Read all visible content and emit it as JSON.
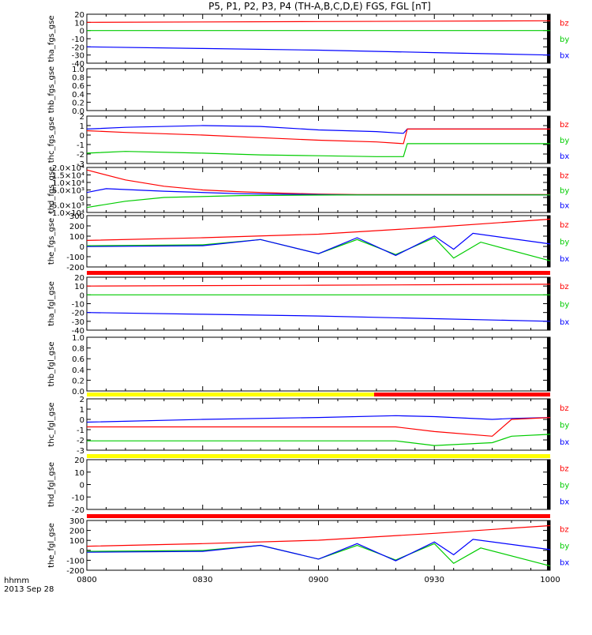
{
  "title": "P5, P1, P2, P3, P4 (TH-A,B,C,D,E) FGS, FGL [nT]",
  "footer": {
    "time_label": "hhmm",
    "date_label": "2013 Sep 28"
  },
  "colors": {
    "bz": "#ff0000",
    "by": "#00cc00",
    "bx": "#0000ff",
    "bar_red": "#ff0000",
    "bar_yellow": "#ffff00"
  },
  "chart_data": {
    "type": "line",
    "x_axis": {
      "range": [
        "0800",
        "1000"
      ],
      "tick_labels": [
        "0800",
        "0830",
        "0900",
        "0930",
        "1000"
      ]
    },
    "legend": [
      "bz",
      "by",
      "bx"
    ],
    "panels": [
      {
        "ylabel": "tha_fgs_gse",
        "ylim": [
          -40,
          20
        ],
        "ytick_labels": [
          "20",
          "10",
          "0",
          "-10",
          "-20",
          "-30",
          "-40"
        ],
        "legend_entries": [
          "bz",
          "by",
          "bx"
        ],
        "series": [
          {
            "name": "bz",
            "x": [
              "0800",
              "0830",
              "0900",
              "0930",
              "1000"
            ],
            "values": [
              10,
              10.5,
              11,
              11.5,
              12
            ]
          },
          {
            "name": "by",
            "x": [
              "0800",
              "0830",
              "0900",
              "0930",
              "1000"
            ],
            "values": [
              0,
              0,
              0,
              0,
              0
            ]
          },
          {
            "name": "bx",
            "x": [
              "0800",
              "0830",
              "0900",
              "0930",
              "1000"
            ],
            "values": [
              -20,
              -22,
              -24,
              -27,
              -30
            ]
          }
        ]
      },
      {
        "ylabel": "thb_fgs_gse",
        "ylim": [
          0,
          1
        ],
        "ytick_labels": [
          "1.0",
          "0.8",
          "0.6",
          "0.4",
          "0.2",
          "0.0"
        ],
        "legend_entries": [],
        "series": []
      },
      {
        "ylabel": "thc_fgs_gse",
        "ylim": [
          -3,
          2.5
        ],
        "ytick_labels": [
          "2",
          "1",
          "0",
          "-1",
          "-2",
          "-3"
        ],
        "legend_entries": [
          "bz",
          "by",
          "bx"
        ],
        "series": [
          {
            "name": "bx",
            "x": [
              "0800",
              "0810",
              "0830",
              "0845",
              "0900",
              "0915",
              "0922",
              "0923",
              "1000"
            ],
            "values": [
              1.0,
              1.2,
              1.4,
              1.3,
              0.9,
              0.7,
              0.5,
              1.0,
              1.0
            ]
          },
          {
            "name": "bz",
            "x": [
              "0800",
              "0810",
              "0830",
              "0845",
              "0900",
              "0915",
              "0922",
              "0923",
              "1000"
            ],
            "values": [
              0.8,
              0.6,
              0.3,
              0.0,
              -0.3,
              -0.5,
              -0.7,
              1.0,
              1.0
            ]
          },
          {
            "name": "by",
            "x": [
              "0800",
              "0810",
              "0830",
              "0845",
              "0900",
              "0915",
              "0922",
              "0923",
              "1000"
            ],
            "values": [
              -1.8,
              -1.6,
              -1.8,
              -2.0,
              -2.1,
              -2.2,
              -2.2,
              -0.7,
              -0.7
            ]
          }
        ]
      },
      {
        "ylabel": "thd_fgs_gse",
        "ylim": [
          -14000,
          22000
        ],
        "ytick_labels": [
          "2.0×10⁴",
          "1.5×10⁴",
          "1.0×10⁴",
          "5.0×10³",
          "0",
          "-5.0×10³",
          "-1.0×10⁴"
        ],
        "legend_entries": [
          "bz",
          "by",
          "bx"
        ],
        "series": [
          {
            "name": "bz",
            "x": [
              "0800",
              "0810",
              "0820",
              "0830",
              "0840",
              "0850",
              "0900",
              "0910",
              "1000"
            ],
            "values": [
              20000,
              12000,
              7000,
              4000,
              2500,
              1500,
              700,
              300,
              300
            ]
          },
          {
            "name": "bx",
            "x": [
              "0800",
              "0805",
              "0820",
              "0840",
              "0900",
              "0910",
              "1000"
            ],
            "values": [
              2000,
              5000,
              3000,
              1000,
              300,
              0,
              0
            ]
          },
          {
            "name": "by",
            "x": [
              "0800",
              "0810",
              "0820",
              "0840",
              "0900",
              "0910",
              "1000"
            ],
            "values": [
              -10000,
              -5000,
              -2000,
              -500,
              -100,
              0,
              0
            ]
          }
        ]
      },
      {
        "ylabel": "the_fgs_gse",
        "ylim": [
          -250,
          330
        ],
        "ytick_labels": [
          "300",
          "200",
          "100",
          "0",
          "-100",
          "-200"
        ],
        "legend_entries": [
          "bz",
          "by",
          "bx"
        ],
        "series": [
          {
            "name": "bz",
            "x": [
              "0800",
              "0830",
              "0900",
              "0930",
              "1000"
            ],
            "values": [
              50,
              80,
              120,
              200,
              290
            ]
          },
          {
            "name": "by",
            "x": [
              "0800",
              "0830",
              "0845",
              "0900",
              "0910",
              "0920",
              "0930",
              "0935",
              "0942",
              "1000"
            ],
            "values": [
              -10,
              0,
              60,
              -100,
              60,
              -110,
              80,
              -150,
              30,
              -180
            ]
          },
          {
            "name": "bx",
            "x": [
              "0800",
              "0830",
              "0845",
              "0900",
              "0910",
              "0920",
              "0930",
              "0935",
              "0940",
              "1000"
            ],
            "values": [
              -20,
              -10,
              60,
              -100,
              80,
              -120,
              100,
              -50,
              130,
              10
            ]
          }
        ]
      },
      {
        "ylabel": "tha_fgl_gse",
        "ylim": [
          -40,
          20
        ],
        "ytick_labels": [
          "20",
          "10",
          "0",
          "-10",
          "-20",
          "-30",
          "-40"
        ],
        "legend_entries": [
          "bz",
          "by",
          "bx"
        ],
        "series": [
          {
            "name": "bz",
            "x": [
              "0800",
              "0830",
              "0900",
              "0930",
              "1000"
            ],
            "values": [
              10,
              10.5,
              11,
              11.5,
              12
            ]
          },
          {
            "name": "by",
            "x": [
              "0800",
              "0830",
              "0900",
              "0930",
              "1000"
            ],
            "values": [
              0,
              0,
              0,
              0,
              0
            ]
          },
          {
            "name": "bx",
            "x": [
              "0800",
              "0830",
              "0900",
              "0930",
              "1000"
            ],
            "values": [
              -20,
              -22,
              -24,
              -27,
              -30
            ]
          }
        ]
      },
      {
        "ylabel": "thb_fgl_gse",
        "ylim": [
          0,
          1
        ],
        "ytick_labels": [
          "1.0",
          "0.8",
          "0.6",
          "0.4",
          "0.2",
          "0.0"
        ],
        "legend_entries": [],
        "series": []
      },
      {
        "ylabel": "thc_fgl_gse",
        "ylim": [
          -3,
          2.5
        ],
        "ytick_labels": [
          "2",
          "1",
          "0",
          "-1",
          "-2",
          "-3"
        ],
        "legend_entries": [
          "bz",
          "by",
          "bx"
        ],
        "series": [
          {
            "name": "bx",
            "x": [
              "0800",
              "0830",
              "0900",
              "0920",
              "0930",
              "0945",
              "0950",
              "1000"
            ],
            "values": [
              0,
              0.3,
              0.5,
              0.7,
              0.6,
              0.3,
              0.4,
              0.5
            ]
          },
          {
            "name": "bz",
            "x": [
              "0800",
              "0830",
              "0900",
              "0920",
              "0930",
              "0945",
              "0950",
              "1000"
            ],
            "values": [
              -0.5,
              -0.5,
              -0.5,
              -0.5,
              -1.0,
              -1.5,
              0.3,
              0.5
            ]
          },
          {
            "name": "by",
            "x": [
              "0800",
              "0830",
              "0900",
              "0920",
              "0930",
              "0945",
              "0950",
              "1000"
            ],
            "values": [
              -2,
              -2,
              -2,
              -2,
              -2.5,
              -2.2,
              -1.5,
              -1.3
            ]
          }
        ]
      },
      {
        "ylabel": "thd_fgl_gse",
        "ylim": [
          -25,
          25
        ],
        "ytick_labels": [
          "20",
          "10",
          "0",
          "-10",
          "-20"
        ],
        "legend_entries": [
          "bz",
          "by",
          "bx"
        ],
        "series": []
      },
      {
        "ylabel": "the_fgl_gse",
        "ylim": [
          -230,
          350
        ],
        "ytick_labels": [
          "300",
          "200",
          "100",
          "0",
          "-100",
          "-200"
        ],
        "legend_entries": [
          "bz",
          "by",
          "bx"
        ],
        "series": [
          {
            "name": "bz",
            "x": [
              "0800",
              "0830",
              "0900",
              "0930",
              "1000"
            ],
            "values": [
              50,
              80,
              120,
              200,
              290
            ]
          },
          {
            "name": "by",
            "x": [
              "0800",
              "0830",
              "0845",
              "0900",
              "0910",
              "0920",
              "0930",
              "0935",
              "0942",
              "1000"
            ],
            "values": [
              -10,
              0,
              60,
              -100,
              60,
              -110,
              80,
              -150,
              30,
              -180
            ]
          },
          {
            "name": "bx",
            "x": [
              "0800",
              "0830",
              "0845",
              "0900",
              "0910",
              "0920",
              "0930",
              "0935",
              "0940",
              "1000"
            ],
            "values": [
              -20,
              -10,
              60,
              -100,
              80,
              -120,
              100,
              -50,
              130,
              10
            ]
          }
        ]
      }
    ]
  }
}
